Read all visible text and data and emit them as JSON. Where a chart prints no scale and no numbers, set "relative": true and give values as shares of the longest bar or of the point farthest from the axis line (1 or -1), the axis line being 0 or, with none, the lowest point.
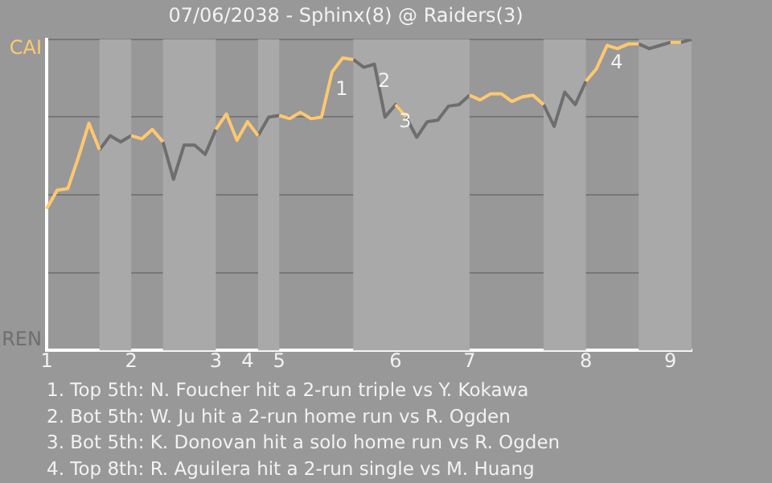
{
  "chart_data": {
    "type": "line",
    "title": "07/06/2038 - Sphinx(8) @ Raiders(3)",
    "categories": [
      "1",
      null,
      null,
      null,
      null,
      null,
      null,
      null,
      "2",
      null,
      null,
      null,
      null,
      null,
      null,
      null,
      "3",
      null,
      null,
      "4",
      null,
      null,
      "5",
      null,
      null,
      null,
      null,
      null,
      null,
      null,
      null,
      null,
      null,
      "6",
      null,
      null,
      null,
      null,
      null,
      null,
      "7",
      null,
      null,
      null,
      null,
      null,
      null,
      null,
      null,
      null,
      null,
      "8",
      null,
      null,
      null,
      null,
      null,
      null,
      null,
      "9",
      null,
      null
    ],
    "relative": true,
    "series": [
      {
        "name": "CAI",
        "color": "#ffc870",
        "values": [
          0.455,
          0.515,
          0.52,
          0.62,
          0.73,
          0.645,
          null,
          null,
          0.69,
          0.68,
          0.71,
          0.67,
          null,
          null,
          null,
          null,
          0.71,
          0.76,
          0.675,
          0.735,
          0.69,
          null,
          0.755,
          0.745,
          0.765,
          0.745,
          0.75,
          0.895,
          0.94,
          0.935,
          null,
          null,
          null,
          0.79,
          0.75,
          null,
          null,
          null,
          null,
          null,
          0.82,
          0.805,
          0.825,
          0.825,
          0.8,
          0.815,
          0.82,
          0.79,
          null,
          null,
          null,
          0.865,
          0.905,
          0.98,
          0.97,
          0.985,
          0.985,
          null,
          null,
          0.99,
          0.99,
          null
        ]
      },
      {
        "name": "REN",
        "color": "#6e6e6e",
        "values": [
          null,
          null,
          null,
          null,
          null,
          0.645,
          0.69,
          0.67,
          0.69,
          null,
          null,
          0.67,
          0.55,
          0.66,
          0.66,
          0.63,
          0.71,
          null,
          null,
          null,
          0.69,
          0.75,
          0.755,
          null,
          null,
          null,
          null,
          null,
          null,
          0.935,
          0.91,
          0.92,
          0.75,
          0.79,
          0.75,
          0.685,
          0.735,
          0.74,
          0.785,
          0.79,
          0.82,
          null,
          null,
          null,
          null,
          null,
          null,
          0.79,
          0.72,
          0.83,
          0.79,
          0.865,
          null,
          null,
          null,
          null,
          0.985,
          0.97,
          0.98,
          0.99,
          0.99,
          1.0
        ]
      }
    ],
    "grid": "y",
    "annotations": [
      {
        "text": "1",
        "y": 0.895
      },
      {
        "text": "2",
        "y": 0.92
      },
      {
        "text": "3",
        "y": 0.79
      },
      {
        "text": "4",
        "y": 0.98
      },
      "1. Top 5th: N. Foucher hit a 2-run triple vs Y. Kokawa",
      "2. Bot 5th: W. Ju hit a 2-run home run vs R. Ogden",
      "3. Bot 5th: K. Donovan hit a solo home run vs R. Ogden",
      "4. Top 8th: R. Aguilera hit a 2-run single vs M. Huang"
    ]
  }
}
